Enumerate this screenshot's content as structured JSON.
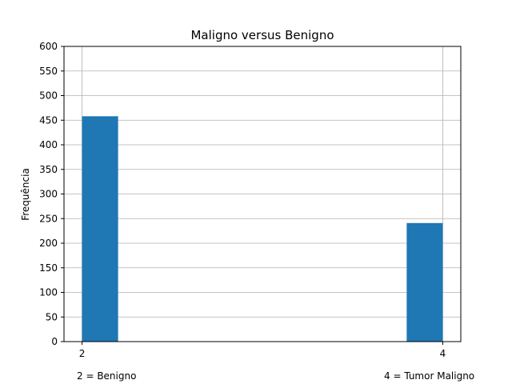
{
  "chart_data": {
    "type": "bar",
    "title": "Maligno versus Benigno",
    "xlabel": "",
    "ylabel": "Frequência",
    "x": [
      2,
      4
    ],
    "values": [
      458,
      241
    ],
    "bar_color": "#1f77b4",
    "xlim": [
      1.9,
      4.1
    ],
    "ylim": [
      0,
      600
    ],
    "yticks": [
      0,
      50,
      100,
      150,
      200,
      250,
      300,
      350,
      400,
      450,
      500,
      550,
      600
    ],
    "xticks": [
      2,
      4
    ],
    "grid": true,
    "annotations": [
      "2 = Benigno",
      "4 = Tumor Maligno"
    ]
  }
}
